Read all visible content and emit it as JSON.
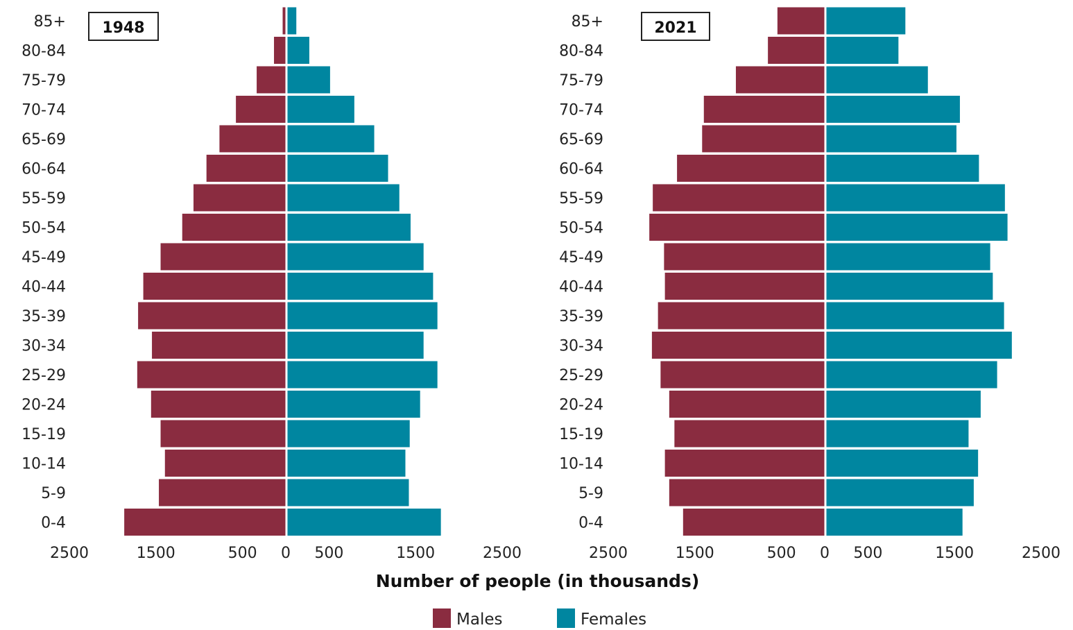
{
  "chart_data": {
    "type": "bar",
    "orientation": "horizontal",
    "xlabel": "Number of people (in thousands)",
    "x_ticks": [
      "2500",
      "1500",
      "500",
      "0",
      "500",
      "1500",
      "2500"
    ],
    "xlim": [
      -2500,
      2500
    ],
    "categories": [
      "85+",
      "80-84",
      "75-79",
      "70-74",
      "65-69",
      "60-64",
      "55-59",
      "50-54",
      "45-49",
      "40-44",
      "35-39",
      "30-34",
      "25-29",
      "20-24",
      "15-19",
      "10-14",
      "5-9",
      "0-4"
    ],
    "legend": [
      {
        "name": "Males",
        "color": "#8a2c40"
      },
      {
        "name": "Females",
        "color": "#0086a0"
      }
    ],
    "panels": [
      {
        "label": "1948",
        "series": [
          {
            "name": "Males",
            "values": [
              40,
              140,
              340,
              580,
              770,
              920,
              1070,
              1200,
              1450,
              1650,
              1710,
              1550,
              1720,
              1560,
              1450,
              1400,
              1470,
              1870
            ]
          },
          {
            "name": "Females",
            "values": [
              110,
              260,
              500,
              780,
              1010,
              1170,
              1300,
              1430,
              1580,
              1690,
              1740,
              1580,
              1740,
              1540,
              1420,
              1370,
              1410,
              1780
            ]
          }
        ]
      },
      {
        "label": "2021",
        "series": [
          {
            "name": "Males",
            "values": [
              550,
              660,
              1030,
              1400,
              1420,
              1710,
              1990,
              2030,
              1860,
              1850,
              1930,
              2000,
              1900,
              1800,
              1740,
              1850,
              1800,
              1640
            ]
          },
          {
            "name": "Females",
            "values": [
              920,
              840,
              1180,
              1550,
              1510,
              1770,
              2070,
              2100,
              1900,
              1930,
              2060,
              2150,
              1980,
              1790,
              1650,
              1760,
              1710,
              1580
            ]
          }
        ]
      }
    ]
  }
}
